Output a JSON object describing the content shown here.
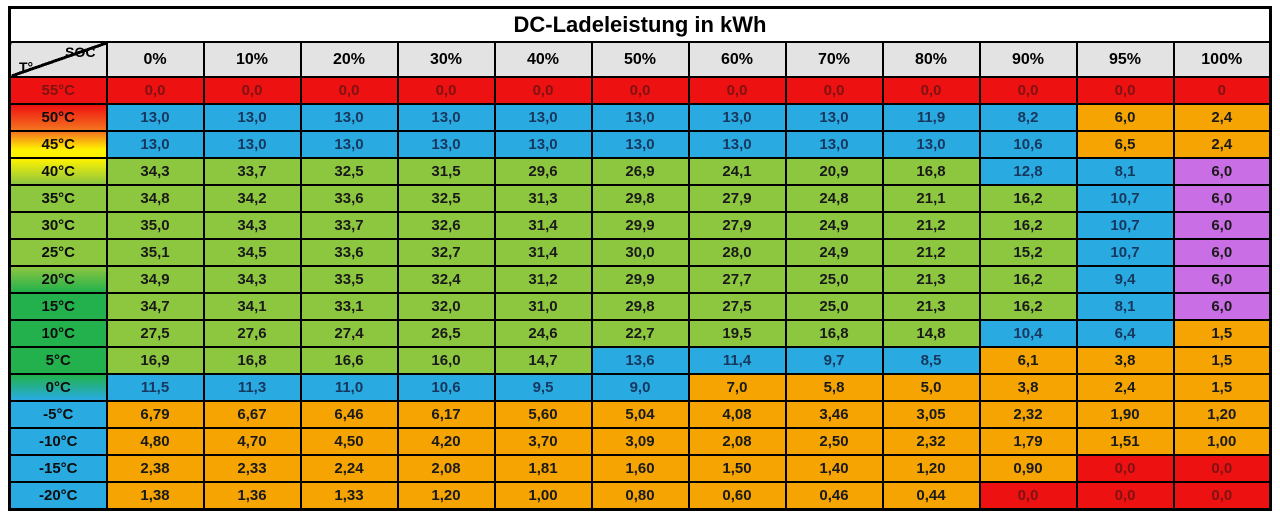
{
  "chart_data": {
    "type": "heatmap",
    "title": "DC-Ladeleistung in kWh",
    "corner": {
      "top_label": "SOC",
      "bottom_label": "T°"
    },
    "xlabel": "SOC",
    "ylabel": "T°",
    "columns": [
      "0%",
      "10%",
      "20%",
      "30%",
      "40%",
      "50%",
      "60%",
      "70%",
      "80%",
      "90%",
      "95%",
      "100%"
    ],
    "colors": {
      "red": "#ee1111",
      "orange_deep": "#f4741f",
      "yellow": "#fff200",
      "green": "#8dc63f",
      "mid_green": "#22b14c",
      "blue": "#29abe2",
      "orange": "#f5a402",
      "purple": "#c96ee4",
      "header_bg": "#e3e3e3",
      "text_on_red": "#7f1212",
      "text_on_blue": "#17375e",
      "text_default": "#1a1a1a"
    },
    "rows": [
      {
        "label": "55°C",
        "label_bg": "red",
        "cells": [
          [
            "0,0",
            "red"
          ],
          [
            "0,0",
            "red"
          ],
          [
            "0,0",
            "red"
          ],
          [
            "0,0",
            "red"
          ],
          [
            "0,0",
            "red"
          ],
          [
            "0,0",
            "red"
          ],
          [
            "0,0",
            "red"
          ],
          [
            "0,0",
            "red"
          ],
          [
            "0,0",
            "red"
          ],
          [
            "0,0",
            "red"
          ],
          [
            "0,0",
            "red"
          ],
          [
            "0",
            "red"
          ]
        ]
      },
      {
        "label": "50°C",
        "label_bg": "red_orange",
        "cells": [
          [
            "13,0",
            "blue"
          ],
          [
            "13,0",
            "blue"
          ],
          [
            "13,0",
            "blue"
          ],
          [
            "13,0",
            "blue"
          ],
          [
            "13,0",
            "blue"
          ],
          [
            "13,0",
            "blue"
          ],
          [
            "13,0",
            "blue"
          ],
          [
            "13,0",
            "blue"
          ],
          [
            "11,9",
            "blue"
          ],
          [
            "8,2",
            "blue"
          ],
          [
            "6,0",
            "orange"
          ],
          [
            "2,4",
            "orange"
          ]
        ]
      },
      {
        "label": "45°C",
        "label_bg": "orange_yellow",
        "cells": [
          [
            "13,0",
            "blue"
          ],
          [
            "13,0",
            "blue"
          ],
          [
            "13,0",
            "blue"
          ],
          [
            "13,0",
            "blue"
          ],
          [
            "13,0",
            "blue"
          ],
          [
            "13,0",
            "blue"
          ],
          [
            "13,0",
            "blue"
          ],
          [
            "13,0",
            "blue"
          ],
          [
            "13,0",
            "blue"
          ],
          [
            "10,6",
            "blue"
          ],
          [
            "6,5",
            "orange"
          ],
          [
            "2,4",
            "orange"
          ]
        ]
      },
      {
        "label": "40°C",
        "label_bg": "yellow_green",
        "cells": [
          [
            "34,3",
            "green"
          ],
          [
            "33,7",
            "green"
          ],
          [
            "32,5",
            "green"
          ],
          [
            "31,5",
            "green"
          ],
          [
            "29,6",
            "green"
          ],
          [
            "26,9",
            "green"
          ],
          [
            "24,1",
            "green"
          ],
          [
            "20,9",
            "green"
          ],
          [
            "16,8",
            "green"
          ],
          [
            "12,8",
            "blue"
          ],
          [
            "8,1",
            "blue"
          ],
          [
            "6,0",
            "purple"
          ]
        ]
      },
      {
        "label": "35°C",
        "label_bg": "lightgreen",
        "cells": [
          [
            "34,8",
            "green"
          ],
          [
            "34,2",
            "green"
          ],
          [
            "33,6",
            "green"
          ],
          [
            "32,5",
            "green"
          ],
          [
            "31,3",
            "green"
          ],
          [
            "29,8",
            "green"
          ],
          [
            "27,9",
            "green"
          ],
          [
            "24,8",
            "green"
          ],
          [
            "21,1",
            "green"
          ],
          [
            "16,2",
            "green"
          ],
          [
            "10,7",
            "blue"
          ],
          [
            "6,0",
            "purple"
          ]
        ]
      },
      {
        "label": "30°C",
        "label_bg": "lightgreen",
        "cells": [
          [
            "35,0",
            "green"
          ],
          [
            "34,3",
            "green"
          ],
          [
            "33,7",
            "green"
          ],
          [
            "32,6",
            "green"
          ],
          [
            "31,4",
            "green"
          ],
          [
            "29,9",
            "green"
          ],
          [
            "27,9",
            "green"
          ],
          [
            "24,9",
            "green"
          ],
          [
            "21,2",
            "green"
          ],
          [
            "16,2",
            "green"
          ],
          [
            "10,7",
            "blue"
          ],
          [
            "6,0",
            "purple"
          ]
        ]
      },
      {
        "label": "25°C",
        "label_bg": "lightgreen",
        "cells": [
          [
            "35,1",
            "green"
          ],
          [
            "34,5",
            "green"
          ],
          [
            "33,6",
            "green"
          ],
          [
            "32,7",
            "green"
          ],
          [
            "31,4",
            "green"
          ],
          [
            "30,0",
            "green"
          ],
          [
            "28,0",
            "green"
          ],
          [
            "24,9",
            "green"
          ],
          [
            "21,2",
            "green"
          ],
          [
            "15,2",
            "green"
          ],
          [
            "10,7",
            "blue"
          ],
          [
            "6,0",
            "purple"
          ]
        ]
      },
      {
        "label": "20°C",
        "label_bg": "lightgreen_green",
        "cells": [
          [
            "34,9",
            "green"
          ],
          [
            "34,3",
            "green"
          ],
          [
            "33,5",
            "green"
          ],
          [
            "32,4",
            "green"
          ],
          [
            "31,2",
            "green"
          ],
          [
            "29,9",
            "green"
          ],
          [
            "27,7",
            "green"
          ],
          [
            "25,0",
            "green"
          ],
          [
            "21,3",
            "green"
          ],
          [
            "16,2",
            "green"
          ],
          [
            "9,4",
            "blue"
          ],
          [
            "6,0",
            "purple"
          ]
        ]
      },
      {
        "label": "15°C",
        "label_bg": "green",
        "cells": [
          [
            "34,7",
            "green"
          ],
          [
            "34,1",
            "green"
          ],
          [
            "33,1",
            "green"
          ],
          [
            "32,0",
            "green"
          ],
          [
            "31,0",
            "green"
          ],
          [
            "29,8",
            "green"
          ],
          [
            "27,5",
            "green"
          ],
          [
            "25,0",
            "green"
          ],
          [
            "21,3",
            "green"
          ],
          [
            "16,2",
            "green"
          ],
          [
            "8,1",
            "blue"
          ],
          [
            "6,0",
            "purple"
          ]
        ]
      },
      {
        "label": "10°C",
        "label_bg": "green",
        "cells": [
          [
            "27,5",
            "green"
          ],
          [
            "27,6",
            "green"
          ],
          [
            "27,4",
            "green"
          ],
          [
            "26,5",
            "green"
          ],
          [
            "24,6",
            "green"
          ],
          [
            "22,7",
            "green"
          ],
          [
            "19,5",
            "green"
          ],
          [
            "16,8",
            "green"
          ],
          [
            "14,8",
            "green"
          ],
          [
            "10,4",
            "blue"
          ],
          [
            "6,4",
            "blue"
          ],
          [
            "1,5",
            "orange"
          ]
        ]
      },
      {
        "label": "5°C",
        "label_bg": "green",
        "cells": [
          [
            "16,9",
            "green"
          ],
          [
            "16,8",
            "green"
          ],
          [
            "16,6",
            "green"
          ],
          [
            "16,0",
            "green"
          ],
          [
            "14,7",
            "green"
          ],
          [
            "13,6",
            "blue"
          ],
          [
            "11,4",
            "blue"
          ],
          [
            "9,7",
            "blue"
          ],
          [
            "8,5",
            "blue"
          ],
          [
            "6,1",
            "orange"
          ],
          [
            "3,8",
            "orange"
          ],
          [
            "1,5",
            "orange"
          ]
        ]
      },
      {
        "label": "0°C",
        "label_bg": "green_blue",
        "cells": [
          [
            "11,5",
            "blue"
          ],
          [
            "11,3",
            "blue"
          ],
          [
            "11,0",
            "blue"
          ],
          [
            "10,6",
            "blue"
          ],
          [
            "9,5",
            "blue"
          ],
          [
            "9,0",
            "blue"
          ],
          [
            "7,0",
            "orange"
          ],
          [
            "5,8",
            "orange"
          ],
          [
            "5,0",
            "orange"
          ],
          [
            "3,8",
            "orange"
          ],
          [
            "2,4",
            "orange"
          ],
          [
            "1,5",
            "orange"
          ]
        ]
      },
      {
        "label": "-5°C",
        "label_bg": "blue",
        "cells": [
          [
            "6,79",
            "orange"
          ],
          [
            "6,67",
            "orange"
          ],
          [
            "6,46",
            "orange"
          ],
          [
            "6,17",
            "orange"
          ],
          [
            "5,60",
            "orange"
          ],
          [
            "5,04",
            "orange"
          ],
          [
            "4,08",
            "orange"
          ],
          [
            "3,46",
            "orange"
          ],
          [
            "3,05",
            "orange"
          ],
          [
            "2,32",
            "orange"
          ],
          [
            "1,90",
            "orange"
          ],
          [
            "1,20",
            "orange"
          ]
        ]
      },
      {
        "label": "-10°C",
        "label_bg": "blue",
        "cells": [
          [
            "4,80",
            "orange"
          ],
          [
            "4,70",
            "orange"
          ],
          [
            "4,50",
            "orange"
          ],
          [
            "4,20",
            "orange"
          ],
          [
            "3,70",
            "orange"
          ],
          [
            "3,09",
            "orange"
          ],
          [
            "2,08",
            "orange"
          ],
          [
            "2,50",
            "orange"
          ],
          [
            "2,32",
            "orange"
          ],
          [
            "1,79",
            "orange"
          ],
          [
            "1,51",
            "orange"
          ],
          [
            "1,00",
            "orange"
          ]
        ]
      },
      {
        "label": "-15°C",
        "label_bg": "blue",
        "cells": [
          [
            "2,38",
            "orange"
          ],
          [
            "2,33",
            "orange"
          ],
          [
            "2,24",
            "orange"
          ],
          [
            "2,08",
            "orange"
          ],
          [
            "1,81",
            "orange"
          ],
          [
            "1,60",
            "orange"
          ],
          [
            "1,50",
            "orange"
          ],
          [
            "1,40",
            "orange"
          ],
          [
            "1,20",
            "orange"
          ],
          [
            "0,90",
            "orange"
          ],
          [
            "0,0",
            "red"
          ],
          [
            "0,0",
            "red"
          ]
        ]
      },
      {
        "label": "-20°C",
        "label_bg": "blue",
        "cells": [
          [
            "1,38",
            "orange"
          ],
          [
            "1,36",
            "orange"
          ],
          [
            "1,33",
            "orange"
          ],
          [
            "1,20",
            "orange"
          ],
          [
            "1,00",
            "orange"
          ],
          [
            "0,80",
            "orange"
          ],
          [
            "0,60",
            "orange"
          ],
          [
            "0,46",
            "orange"
          ],
          [
            "0,44",
            "orange"
          ],
          [
            "0,0",
            "red"
          ],
          [
            "0,0",
            "red"
          ],
          [
            "0,0",
            "red"
          ]
        ]
      }
    ]
  }
}
